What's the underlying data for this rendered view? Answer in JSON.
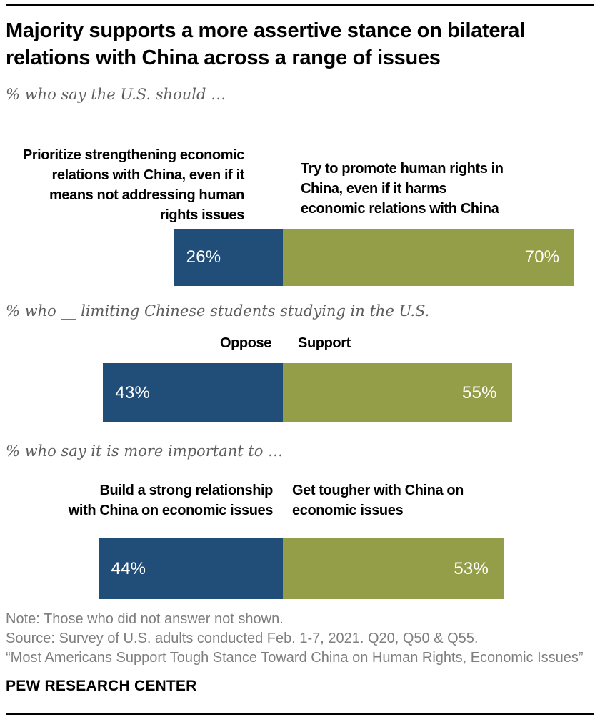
{
  "header": {
    "title": "Majority supports a more assertive stance on bilateral\nrelations with China across a range of issues"
  },
  "colors": {
    "blue": "#204E79",
    "green": "#949E49",
    "subtitle_gray": "#5e5e5e",
    "footer_gray": "#7e7e7e"
  },
  "chart_data": [
    {
      "type": "bar",
      "question": "% who say the U.S. should …",
      "unit": "%",
      "xlim": [
        0,
        100
      ],
      "bars": [
        {
          "label": "Prioritize strengthening economic\nrelations with China, even if it\nmeans not addressing human\nrights issues",
          "value": 26,
          "value_label": "26%",
          "color": "#204E79"
        },
        {
          "label": "Try to promote human rights in\nChina, even if it harms\neconomic relations with China",
          "value": 70,
          "value_label": "70%",
          "color": "#949E49"
        }
      ]
    },
    {
      "type": "bar",
      "question": "% who __ limiting Chinese students studying in the U.S.",
      "unit": "%",
      "xlim": [
        0,
        100
      ],
      "bars": [
        {
          "label": "Oppose",
          "value": 43,
          "value_label": "43%",
          "color": "#204E79"
        },
        {
          "label": "Support",
          "value": 55,
          "value_label": "55%",
          "color": "#949E49"
        }
      ]
    },
    {
      "type": "bar",
      "question": "% who say it is more important to …",
      "unit": "%",
      "xlim": [
        0,
        100
      ],
      "bars": [
        {
          "label": "Build a strong relationship\nwith China on economic issues",
          "value": 44,
          "value_label": "44%",
          "color": "#204E79"
        },
        {
          "label": "Get tougher with China on\neconomic issues",
          "value": 53,
          "value_label": "53%",
          "color": "#949E49"
        }
      ]
    }
  ],
  "footer": {
    "note": "Note: Those who did not answer not shown.",
    "source": "Source: Survey of U.S. adults conducted Feb. 1-7, 2021. Q20, Q50 & Q55.",
    "report": "“Most Americans Support Tough Stance Toward China on Human Rights, Economic Issues”",
    "brand": "PEW RESEARCH CENTER"
  }
}
